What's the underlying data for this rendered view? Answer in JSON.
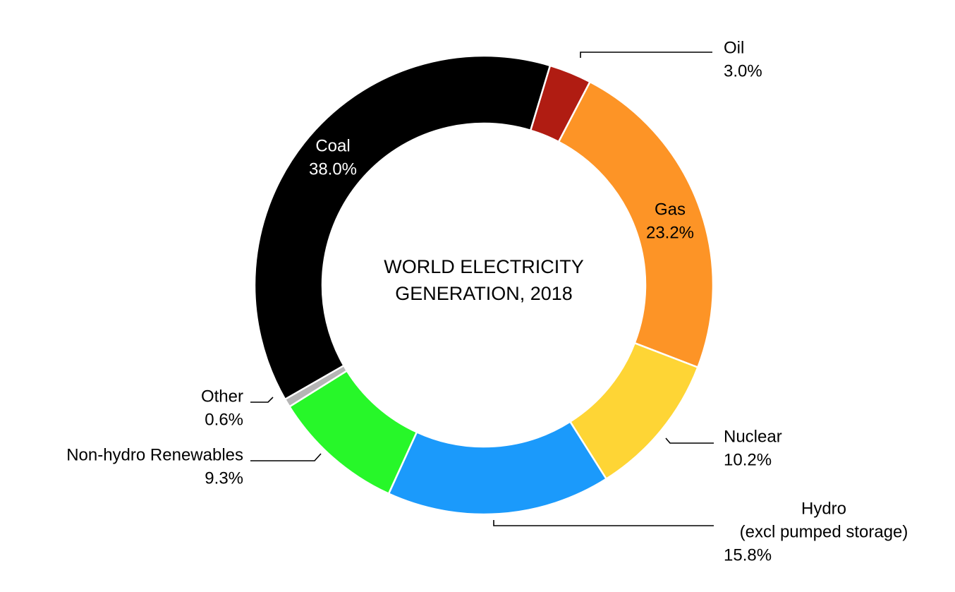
{
  "chart_data": {
    "type": "pie",
    "style": "donut",
    "title": [
      "WORLD ELECTRICITY",
      "GENERATION, 2018"
    ],
    "unit": "%",
    "slices": [
      {
        "key": "oil",
        "label": [
          "Oil"
        ],
        "value": 3.0,
        "value_text": "3.0%",
        "color": "#b01c12",
        "label_placement": "outside"
      },
      {
        "key": "gas",
        "label": [
          "Gas"
        ],
        "value": 23.2,
        "value_text": "23.2%",
        "color": "#fd9426",
        "label_placement": "inside"
      },
      {
        "key": "nuclear",
        "label": [
          "Nuclear"
        ],
        "value": 10.2,
        "value_text": "10.2%",
        "color": "#fed535",
        "label_placement": "outside"
      },
      {
        "key": "hydro",
        "label": [
          "Hydro",
          "(excl pumped storage)"
        ],
        "value": 15.8,
        "value_text": "15.8%",
        "color": "#1b9afb",
        "label_placement": "outside"
      },
      {
        "key": "renewables",
        "label": [
          "Non-hydro Renewables"
        ],
        "value": 9.3,
        "value_text": "9.3%",
        "color": "#27f729",
        "label_placement": "outside"
      },
      {
        "key": "other",
        "label": [
          "Other"
        ],
        "value": 0.6,
        "value_text": "0.6%",
        "color": "#b5b5b5",
        "label_placement": "outside"
      },
      {
        "key": "coal",
        "label": [
          "Coal"
        ],
        "value": 38.0,
        "value_text": "38.0%",
        "color": "#000000",
        "label_placement": "inside"
      }
    ]
  }
}
